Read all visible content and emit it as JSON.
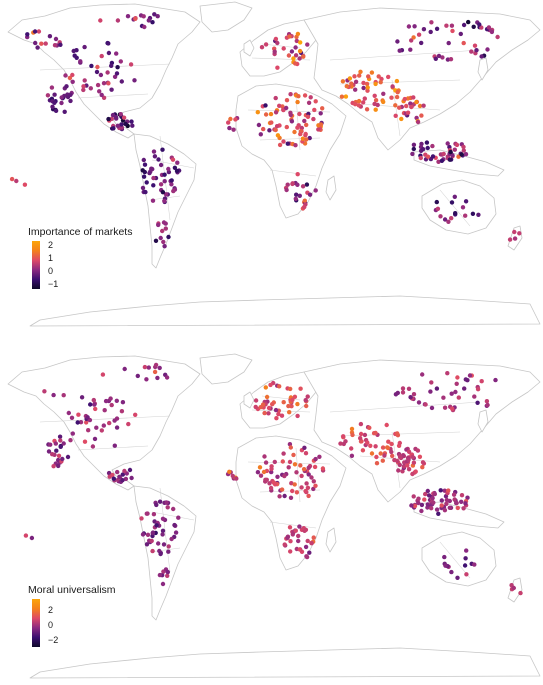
{
  "panels": [
    {
      "id": "top",
      "legend": {
        "title": "Importance of markets",
        "ticks": [
          "2",
          "1",
          "0",
          "−1"
        ],
        "domain": [
          -1.7,
          2.3
        ]
      },
      "seed": 17
    },
    {
      "id": "bottom",
      "legend": {
        "title": "Moral universalism",
        "ticks": [
          "2",
          "0",
          "−2"
        ],
        "domain": [
          -3.0,
          3.4
        ]
      },
      "seed": 91
    }
  ],
  "colors": {
    "scale": [
      "#0d0829",
      "#3b0f70",
      "#8c2981",
      "#de4968",
      "#f4811c",
      "#fca50a"
    ],
    "land_stroke": "#c6c6c6",
    "border_stroke": "#d2d2d2"
  },
  "icons": {
    "legend_bar": "color-gradient-bar",
    "map_markers": "circle-dot"
  }
}
